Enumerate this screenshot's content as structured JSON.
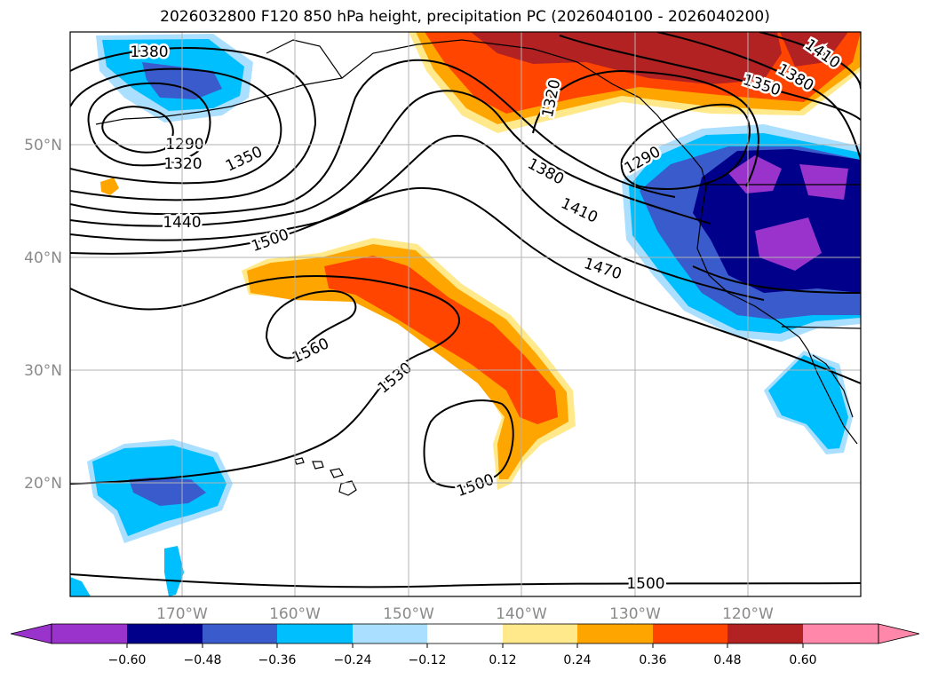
{
  "title": "2026032800 F120 850 hPa height, precipitation PC (2026040100 - 2026040200)",
  "latitude_labels": [
    "50°N",
    "40°N",
    "30°N",
    "20°N"
  ],
  "longitude_labels": [
    "170°W",
    "160°W",
    "150°W",
    "140°W",
    "130°W",
    "120°W"
  ],
  "contour_labels": [
    "1380",
    "1290",
    "1320",
    "1350",
    "1440",
    "1500",
    "1560",
    "1530",
    "1500",
    "1320",
    "1290",
    "1380",
    "1410",
    "1470",
    "1350",
    "1380",
    "1410",
    "1500"
  ],
  "colorbar": {
    "tick_labels": [
      "−0.60",
      "−0.48",
      "−0.36",
      "−0.24",
      "−0.12",
      "0.12",
      "0.24",
      "0.36",
      "0.48",
      "0.60"
    ],
    "colors": [
      "#9933cc",
      "#00008b",
      "#3a5bcc",
      "#00bfff",
      "#aadfff",
      "#ffffff",
      "#ffe98a",
      "#ffa500",
      "#ff4500",
      "#b22222",
      "#ff88aa"
    ]
  },
  "colors": {
    "purple": "#9933cc",
    "navy": "#00008b",
    "royal": "#3a5bcc",
    "sky": "#00bfff",
    "pale_blue": "#aadfff",
    "pale_yellow": "#ffe98a",
    "orange": "#ffa500",
    "orange_red": "#ff4500",
    "dark_red": "#b22222",
    "pink": "#ff88aa"
  }
}
